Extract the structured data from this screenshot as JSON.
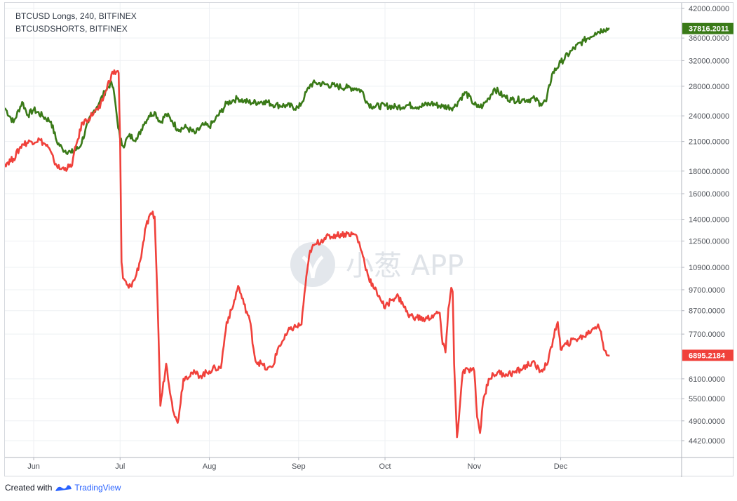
{
  "legend": {
    "line1": "BTCUSD Longs, 240, BITFINEX",
    "line2": "BTCUSDSHORTS, BITFINEX"
  },
  "footer": {
    "created_with": "Created with",
    "brand": "TradingView"
  },
  "watermark": {
    "text": "小葱 APP"
  },
  "colors": {
    "longs": "#3a7a18",
    "shorts": "#f0413b",
    "grid": "#eef0f3",
    "axis": "#b2b5be"
  },
  "chart_data": {
    "type": "line",
    "y_scale": "log",
    "ylim": [
      4200,
      42000
    ],
    "x_ticks": [
      {
        "label": "Jun",
        "x": 0
      },
      {
        "label": "Jul",
        "x": 30
      },
      {
        "label": "Aug",
        "x": 61
      },
      {
        "label": "Sep",
        "x": 92
      },
      {
        "label": "Oct",
        "x": 122
      },
      {
        "label": "Nov",
        "x": 153
      },
      {
        "label": "Dec",
        "x": 183
      }
    ],
    "x_range": [
      -10,
      225
    ],
    "y_ticks": [
      "42000.0000",
      "36000.0000",
      "32000.0000",
      "28000.0000",
      "24000.0000",
      "21000.0000",
      "18000.0000",
      "16000.0000",
      "14000.0000",
      "12500.0000",
      "10900.0000",
      "9700.0000",
      "8700.0000",
      "7700.0000",
      "6100.0000",
      "5500.0000",
      "4900.0000",
      "4420.0000"
    ],
    "series": [
      {
        "name": "BTCUSD Longs",
        "color": "#3a7a18",
        "last_value": "37816.2011",
        "points": [
          [
            -10,
            25000
          ],
          [
            -7,
            23200
          ],
          [
            -4,
            25800
          ],
          [
            -2,
            24100
          ],
          [
            0,
            24800
          ],
          [
            3,
            24000
          ],
          [
            6,
            23300
          ],
          [
            8,
            21000
          ],
          [
            10,
            20200
          ],
          [
            13,
            19800
          ],
          [
            16,
            20400
          ],
          [
            19,
            23200
          ],
          [
            21,
            24700
          ],
          [
            23,
            25900
          ],
          [
            25,
            27400
          ],
          [
            27,
            28600
          ],
          [
            28,
            26800
          ],
          [
            29,
            23600
          ],
          [
            30,
            21300
          ],
          [
            31,
            20500
          ],
          [
            33,
            21600
          ],
          [
            36,
            21300
          ],
          [
            38,
            22900
          ],
          [
            40,
            24000
          ],
          [
            42,
            24500
          ],
          [
            44,
            23200
          ],
          [
            46,
            24200
          ],
          [
            48,
            23400
          ],
          [
            50,
            22400
          ],
          [
            53,
            22600
          ],
          [
            56,
            21900
          ],
          [
            59,
            22900
          ],
          [
            61,
            22700
          ],
          [
            63,
            23500
          ],
          [
            65,
            24500
          ],
          [
            67,
            25600
          ],
          [
            69,
            26000
          ],
          [
            71,
            26300
          ],
          [
            73,
            25900
          ],
          [
            76,
            25700
          ],
          [
            80,
            25900
          ],
          [
            84,
            25400
          ],
          [
            88,
            25300
          ],
          [
            92,
            25000
          ],
          [
            94,
            26500
          ],
          [
            96,
            28200
          ],
          [
            98,
            28500
          ],
          [
            101,
            28300
          ],
          [
            105,
            28000
          ],
          [
            109,
            27800
          ],
          [
            112,
            27700
          ],
          [
            114,
            27300
          ],
          [
            116,
            25600
          ],
          [
            118,
            25200
          ],
          [
            122,
            25300
          ],
          [
            126,
            25100
          ],
          [
            130,
            25400
          ],
          [
            134,
            25200
          ],
          [
            138,
            25600
          ],
          [
            142,
            25200
          ],
          [
            146,
            25100
          ],
          [
            148,
            26200
          ],
          [
            150,
            27100
          ],
          [
            152,
            26000
          ],
          [
            154,
            25100
          ],
          [
            156,
            25300
          ],
          [
            158,
            26300
          ],
          [
            160,
            27700
          ],
          [
            163,
            26600
          ],
          [
            166,
            26100
          ],
          [
            170,
            26100
          ],
          [
            174,
            26200
          ],
          [
            176,
            25600
          ],
          [
            178,
            25900
          ],
          [
            180,
            29800
          ],
          [
            183,
            31700
          ],
          [
            187,
            33800
          ],
          [
            191,
            35500
          ],
          [
            195,
            37000
          ],
          [
            198,
            37700
          ],
          [
            200,
            37816
          ]
        ]
      },
      {
        "name": "BTCUSDSHORTS",
        "color": "#f0413b",
        "last_value": "6895.2184",
        "points": [
          [
            -10,
            18700
          ],
          [
            -7,
            19200
          ],
          [
            -4,
            20700
          ],
          [
            -1,
            21000
          ],
          [
            2,
            21200
          ],
          [
            5,
            20400
          ],
          [
            7,
            19000
          ],
          [
            9,
            18200
          ],
          [
            11,
            18300
          ],
          [
            13,
            18400
          ],
          [
            15,
            20900
          ],
          [
            17,
            23200
          ],
          [
            19,
            23600
          ],
          [
            21,
            24500
          ],
          [
            23,
            25000
          ],
          [
            25,
            27300
          ],
          [
            27,
            29800
          ],
          [
            29,
            30300
          ],
          [
            29.5,
            30000
          ],
          [
            30,
            21000
          ],
          [
            30.5,
            11200
          ],
          [
            31,
            10300
          ],
          [
            33,
            9800
          ],
          [
            35,
            10200
          ],
          [
            37,
            11300
          ],
          [
            39,
            13500
          ],
          [
            41,
            14400
          ],
          [
            42,
            14200
          ],
          [
            43,
            9200
          ],
          [
            44,
            5300
          ],
          [
            46,
            6600
          ],
          [
            48,
            5400
          ],
          [
            49,
            5000
          ],
          [
            50,
            4850
          ],
          [
            52,
            6100
          ],
          [
            55,
            6300
          ],
          [
            58,
            6200
          ],
          [
            61,
            6350
          ],
          [
            63,
            6450
          ],
          [
            65,
            6450
          ],
          [
            67,
            8200
          ],
          [
            69,
            8800
          ],
          [
            71,
            9900
          ],
          [
            73,
            9000
          ],
          [
            75,
            8300
          ],
          [
            77,
            6700
          ],
          [
            79,
            6600
          ],
          [
            81,
            6400
          ],
          [
            83,
            6500
          ],
          [
            85,
            7200
          ],
          [
            87,
            7500
          ],
          [
            89,
            7900
          ],
          [
            91,
            8000
          ],
          [
            93,
            8100
          ],
          [
            94,
            9500
          ],
          [
            96,
            11900
          ],
          [
            98,
            12300
          ],
          [
            101,
            12700
          ],
          [
            105,
            12900
          ],
          [
            109,
            13000
          ],
          [
            112,
            12900
          ],
          [
            114,
            11800
          ],
          [
            116,
            10500
          ],
          [
            118,
            9800
          ],
          [
            120,
            9400
          ],
          [
            122,
            8800
          ],
          [
            124,
            9200
          ],
          [
            126,
            9400
          ],
          [
            128,
            9100
          ],
          [
            130,
            8500
          ],
          [
            133,
            8400
          ],
          [
            136,
            8300
          ],
          [
            139,
            8500
          ],
          [
            141,
            8600
          ],
          [
            142,
            7300
          ],
          [
            143,
            7000
          ],
          [
            144,
            8800
          ],
          [
            145,
            9800
          ],
          [
            145.5,
            9600
          ],
          [
            146,
            6600
          ],
          [
            147,
            4500
          ],
          [
            148,
            5300
          ],
          [
            149,
            6300
          ],
          [
            151,
            6400
          ],
          [
            153,
            6350
          ],
          [
            154,
            5000
          ],
          [
            155,
            4600
          ],
          [
            156,
            5400
          ],
          [
            158,
            6100
          ],
          [
            161,
            6300
          ],
          [
            164,
            6250
          ],
          [
            167,
            6300
          ],
          [
            170,
            6450
          ],
          [
            173,
            6650
          ],
          [
            176,
            6350
          ],
          [
            178,
            6550
          ],
          [
            180,
            7200
          ],
          [
            181,
            7900
          ],
          [
            182,
            8200
          ],
          [
            183,
            7100
          ],
          [
            185,
            7300
          ],
          [
            188,
            7500
          ],
          [
            191,
            7600
          ],
          [
            194,
            7900
          ],
          [
            196,
            8100
          ],
          [
            197,
            7800
          ],
          [
            198,
            7100
          ],
          [
            199,
            6900
          ],
          [
            200,
            6895
          ]
        ]
      }
    ]
  }
}
